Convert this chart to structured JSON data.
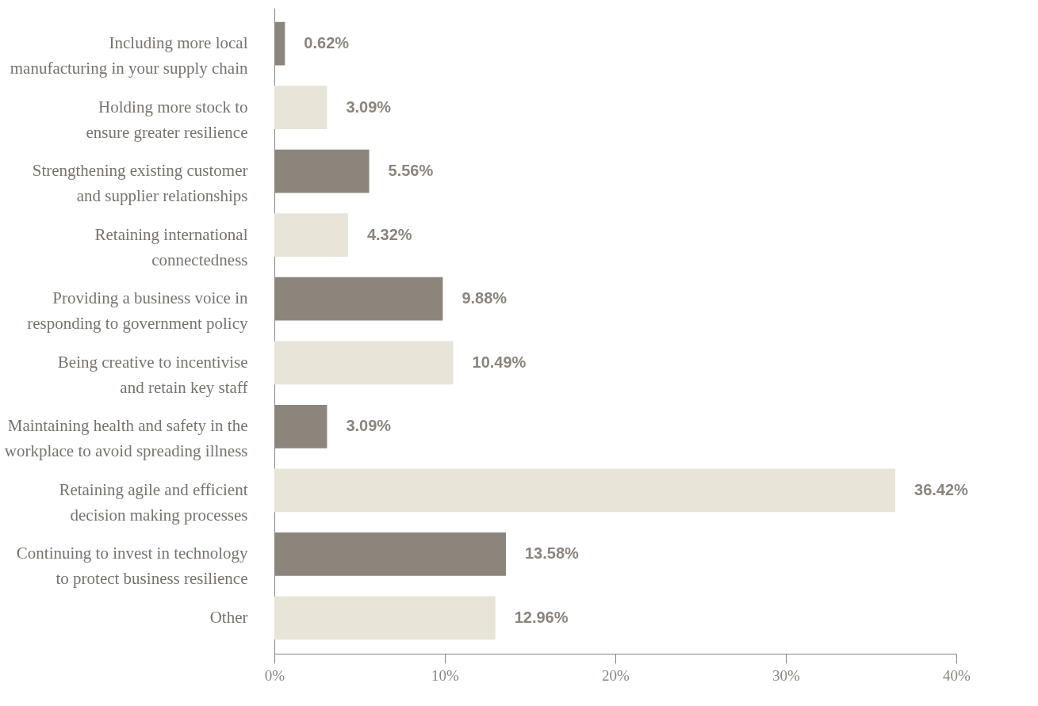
{
  "chart_data": {
    "type": "bar",
    "orientation": "horizontal",
    "categories": [
      "Including more local manufacturing in your supply chain",
      "Holding more stock to ensure greater resilience",
      "Strengthening existing customer and supplier relationships",
      "Retaining international connectedness",
      "Providing a business voice in responding to government policy",
      "Being creative to incentivise and retain key staff",
      "Maintaining health and safety in the workplace to avoid spreading illness",
      "Retaining agile and efficient decision making processes",
      "Continuing to invest in technology to protect business resilience",
      "Other"
    ],
    "values": [
      0.62,
      3.09,
      5.56,
      4.32,
      9.88,
      10.49,
      3.09,
      36.42,
      13.58,
      12.96
    ],
    "colors": [
      "#8c857c",
      "#e8e4d8",
      "#8c857c",
      "#e8e4d8",
      "#8c857c",
      "#e8e4d8",
      "#8c857c",
      "#e8e4d8",
      "#8c857c",
      "#e8e4d8"
    ],
    "value_labels": [
      "0.62%",
      "3.09%",
      "5.56%",
      "4.32%",
      "9.88%",
      "10.49%",
      "3.09%",
      "36.42%",
      "13.58%",
      "12.96%"
    ],
    "xlim": [
      0,
      40
    ],
    "xticks": [
      {
        "value": 0,
        "label": "0%"
      },
      {
        "value": 10,
        "label": "10%"
      },
      {
        "value": 20,
        "label": "20%"
      },
      {
        "value": 30,
        "label": "30%"
      },
      {
        "value": 40,
        "label": "40%"
      }
    ],
    "grid": false
  }
}
